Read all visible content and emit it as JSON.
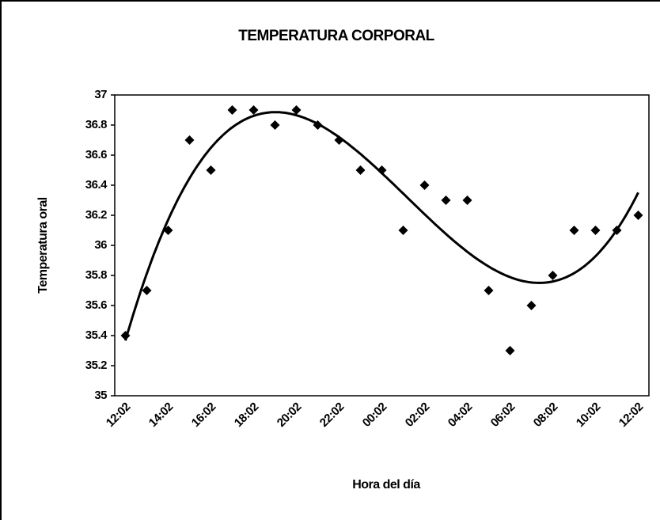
{
  "chart_data": {
    "type": "scatter",
    "title": "TEMPERATURA CORPORAL",
    "x_label": "Hora del día",
    "y_label": "Temperatura oral",
    "categories": [
      "12:02",
      null,
      "14:02",
      null,
      "16:02",
      null,
      "18:02",
      null,
      "20:02",
      null,
      "22:02",
      null,
      "00:02",
      null,
      "02:02",
      null,
      "04:02",
      null,
      "06:02",
      null,
      "08:02",
      null,
      "10:02",
      null,
      "12:02"
    ],
    "values": [
      35.4,
      35.7,
      36.1,
      36.7,
      36.5,
      36.9,
      36.9,
      36.8,
      36.9,
      36.8,
      36.7,
      36.5,
      36.5,
      36.1,
      36.4,
      36.3,
      36.3,
      35.7,
      35.3,
      35.6,
      35.8,
      36.1,
      36.1,
      36.1,
      36.2
    ],
    "color": "#000000",
    "ylim": [
      35,
      37
    ],
    "yticks": [
      35,
      35.2,
      35.4,
      35.6,
      35.8,
      36,
      36.2,
      36.4,
      36.6,
      36.8,
      37
    ],
    "trendline_order": 3
  }
}
